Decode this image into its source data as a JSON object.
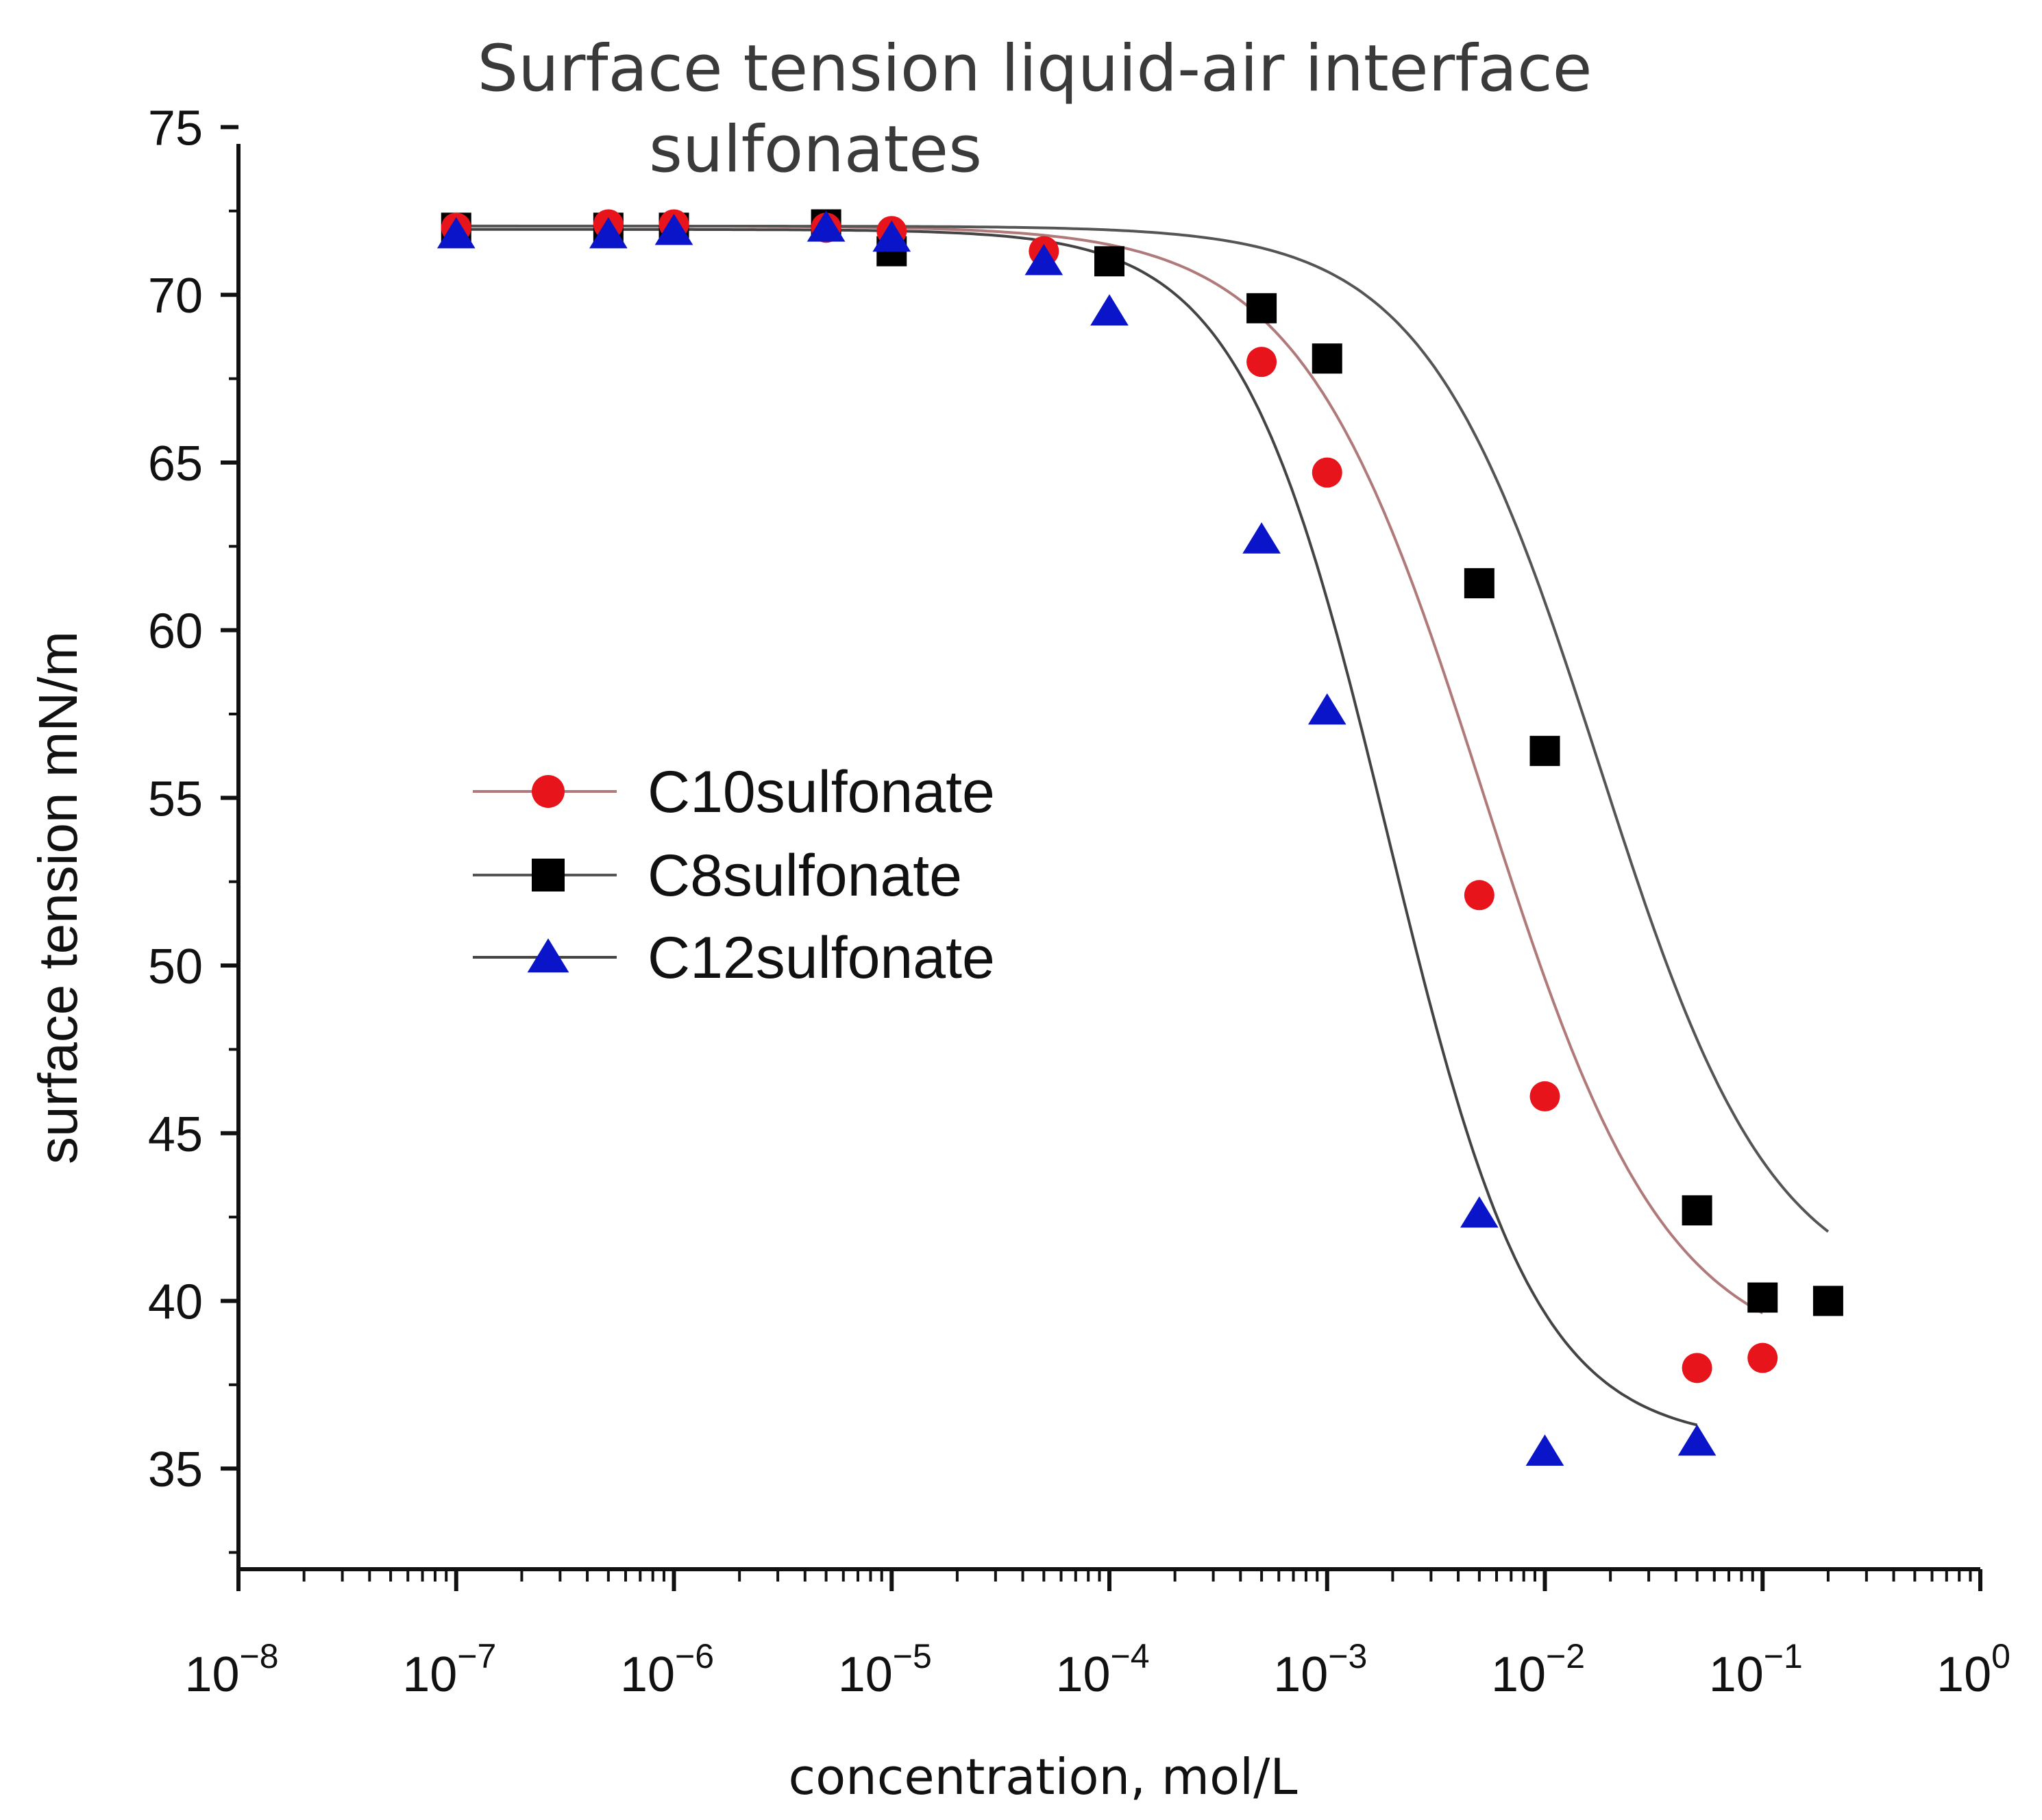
{
  "chart_data": {
    "type": "scatter",
    "title": "Surface tension liquid-air interface",
    "subtitle": "sulfonates",
    "xlabel": "concentration, mol/L",
    "ylabel": "surface tension mN/m",
    "xscale": "log",
    "xlim": [
      1e-08,
      1
    ],
    "ylim": [
      32,
      74.5
    ],
    "x_ticks": [
      {
        "exp": "-8",
        "value": 1e-08
      },
      {
        "exp": "-7",
        "value": 1e-07
      },
      {
        "exp": "-6",
        "value": 1e-06
      },
      {
        "exp": "-5",
        "value": 1e-05
      },
      {
        "exp": "-4",
        "value": 0.0001
      },
      {
        "exp": "-3",
        "value": 0.001
      },
      {
        "exp": "-2",
        "value": 0.01
      },
      {
        "exp": "-1",
        "value": 0.1
      },
      {
        "exp": "0",
        "value": 1
      }
    ],
    "x_tick_base": "10",
    "y_ticks": [
      35,
      40,
      45,
      50,
      55,
      60,
      65,
      70,
      75
    ],
    "legend_position": "center-left",
    "series": [
      {
        "name": "C10sulfonate",
        "marker": "circle",
        "color": "#e8141b",
        "line_color": "#b07a7a",
        "x": [
          1e-07,
          5e-07,
          1e-06,
          5e-06,
          1e-05,
          5e-05,
          0.0005,
          0.001,
          0.005,
          0.01,
          0.05,
          0.1
        ],
        "y": [
          72.0,
          72.1,
          72.1,
          72.0,
          71.9,
          71.3,
          68.0,
          64.7,
          52.1,
          46.1,
          38.0,
          38.3
        ]
      },
      {
        "name": "C8sulfonate",
        "marker": "square",
        "color": "#000000",
        "line_color": "#555555",
        "x": [
          1e-07,
          5e-07,
          1e-06,
          5e-06,
          1e-05,
          0.0001,
          0.0005,
          0.001,
          0.005,
          0.01,
          0.05,
          0.1,
          0.2
        ],
        "y": [
          72.0,
          72.0,
          72.0,
          72.1,
          71.3,
          71.0,
          69.6,
          68.1,
          61.4,
          56.4,
          42.7,
          40.1,
          40.0
        ]
      },
      {
        "name": "C12sulfonate",
        "marker": "triangle",
        "color": "#0a14c8",
        "line_color": "#444444",
        "x": [
          1e-07,
          5e-07,
          1e-06,
          5e-06,
          1e-05,
          5e-05,
          0.0001,
          0.0005,
          0.001,
          0.005,
          0.01,
          0.05
        ],
        "y": [
          71.8,
          71.8,
          71.9,
          72.0,
          71.7,
          71.0,
          69.5,
          62.7,
          57.6,
          42.6,
          35.5,
          35.8
        ]
      }
    ],
    "fits": {
      "C10sulfonate": {
        "top": 72.05,
        "bottom": 38.1,
        "log_x0": -2.28,
        "width": 0.42
      },
      "C8sulfonate": {
        "top": 72.05,
        "bottom": 39.9,
        "log_x0": -1.75,
        "width": 0.4
      },
      "C12sulfonate": {
        "top": 71.95,
        "bottom": 35.75,
        "log_x0": -2.72,
        "width": 0.34
      }
    }
  }
}
